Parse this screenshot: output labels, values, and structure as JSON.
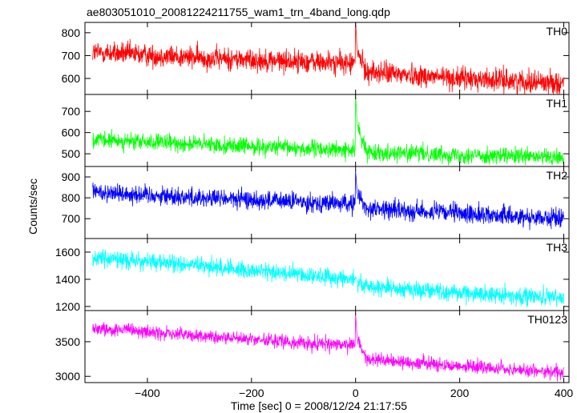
{
  "chart_data": {
    "type": "line",
    "title": "ae803051010_20081224211755_wam1_trn_4band_long.qdp",
    "xlabel": "Time [sec] 0 = 2008/12/24 21:17:55",
    "ylabel": "Counts/sec",
    "xlim": [
      -520,
      410
    ],
    "x_ticks": [
      -400,
      -200,
      0,
      200,
      400
    ],
    "x_tick_labels": [
      "−400",
      "−200",
      "0",
      "200",
      "400"
    ],
    "grid": false,
    "legend": "none",
    "panels": [
      {
        "name": "TH0",
        "color": "#ff0000",
        "ylim": [
          530,
          845
        ],
        "y_ticks": [
          600,
          700,
          800
        ],
        "y_tick_labels": [
          "600",
          "700",
          "800"
        ],
        "trend": {
          "x": [
            -505,
            -300,
            -1,
            0,
            3,
            20,
            200,
            400
          ],
          "y": [
            715,
            690,
            665,
            850,
            720,
            630,
            600,
            580
          ]
        },
        "noise": 35
      },
      {
        "name": "TH1",
        "color": "#00ff00",
        "ylim": [
          440,
          780
        ],
        "y_ticks": [
          500,
          600,
          700
        ],
        "y_tick_labels": [
          "500",
          "600",
          "700"
        ],
        "trend": {
          "x": [
            -505,
            -300,
            -1,
            0,
            3,
            20,
            200,
            400
          ],
          "y": [
            565,
            545,
            515,
            780,
            640,
            510,
            495,
            480
          ]
        },
        "noise": 28
      },
      {
        "name": "TH2",
        "color": "#0000ff",
        "ylim": [
          605,
          950
        ],
        "y_ticks": [
          700,
          800,
          900
        ],
        "y_tick_labels": [
          "700",
          "800",
          "900"
        ],
        "trend": {
          "x": [
            -505,
            -300,
            -1,
            0,
            3,
            20,
            200,
            400
          ],
          "y": [
            830,
            800,
            770,
            930,
            820,
            750,
            725,
            700
          ]
        },
        "noise": 32
      },
      {
        "name": "TH3",
        "color": "#00ffff",
        "ylim": [
          1170,
          1700
        ],
        "y_ticks": [
          1200,
          1400,
          1600
        ],
        "y_tick_labels": [
          "1200",
          "1400",
          "1600"
        ],
        "trend": {
          "x": [
            -505,
            -300,
            -1,
            0,
            3,
            20,
            200,
            400
          ],
          "y": [
            1560,
            1500,
            1400,
            1420,
            1390,
            1350,
            1300,
            1260
          ]
        },
        "noise": 45
      },
      {
        "name": "TH0123",
        "color": "#ff00ff",
        "ylim": [
          2910,
          3950
        ],
        "y_ticks": [
          3000,
          3500
        ],
        "y_tick_labels": [
          "3000",
          "3500"
        ],
        "trend": {
          "x": [
            -505,
            -300,
            -1,
            0,
            3,
            20,
            200,
            400
          ],
          "y": [
            3700,
            3580,
            3440,
            3900,
            3550,
            3250,
            3150,
            3050
          ]
        },
        "noise": 70
      }
    ]
  }
}
